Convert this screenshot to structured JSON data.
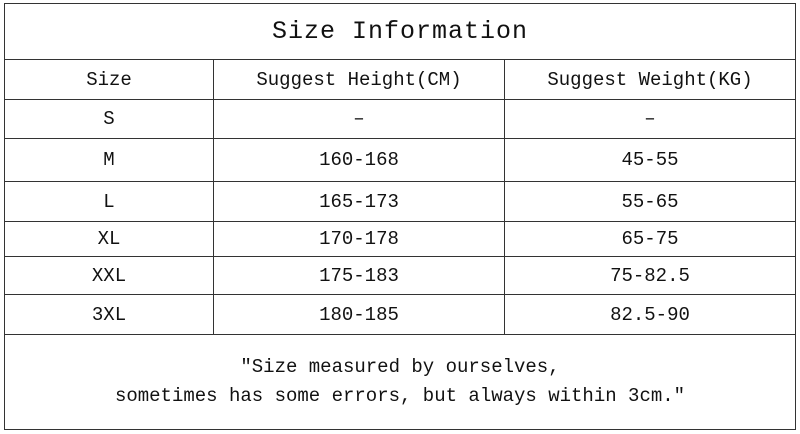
{
  "title": "Size Information",
  "columns": [
    "Size",
    "Suggest Height(CM)",
    "Suggest Weight(KG)"
  ],
  "rows": [
    [
      "S",
      "–",
      "–"
    ],
    [
      "M",
      "160-168",
      "45-55"
    ],
    [
      "L",
      "165-173",
      "55-65"
    ],
    [
      "XL",
      "170-178",
      "65-75"
    ],
    [
      "XXL",
      "175-183",
      "75-82.5"
    ],
    [
      "3XL",
      "180-185",
      "82.5-90"
    ]
  ],
  "note": {
    "line1": "\"Size measured by ourselves,",
    "line2": "sometimes has some errors, but always within 3cm.\""
  }
}
